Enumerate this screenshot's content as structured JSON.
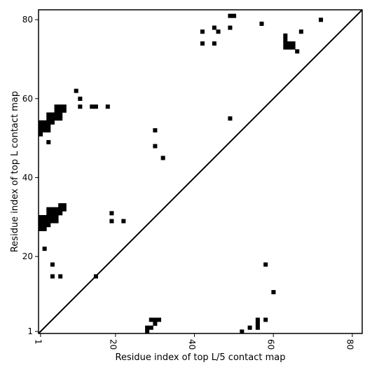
{
  "chart_data": {
    "type": "heatmap",
    "xlabel": "Residue index of top L/5 contact map",
    "ylabel": "Residue index of top L contact map",
    "xlim": [
      0.5,
      82.5
    ],
    "ylim": [
      0.5,
      82.5
    ],
    "x_ticks": [
      1,
      20,
      40,
      60,
      80
    ],
    "y_ticks": [
      1,
      20,
      40,
      60,
      80
    ],
    "diagonal": true,
    "grid": false,
    "cell_color": "#000000",
    "upper_contacts": [
      [
        1,
        51
      ],
      [
        1,
        52
      ],
      [
        1,
        53
      ],
      [
        1,
        54
      ],
      [
        2,
        52
      ],
      [
        2,
        53
      ],
      [
        2,
        54
      ],
      [
        3,
        53
      ],
      [
        3,
        54
      ],
      [
        3,
        55
      ],
      [
        3,
        56
      ],
      [
        4,
        54
      ],
      [
        4,
        55
      ],
      [
        4,
        56
      ],
      [
        3,
        52
      ],
      [
        5,
        55
      ],
      [
        5,
        56
      ],
      [
        5,
        57
      ],
      [
        5,
        58
      ],
      [
        6,
        55
      ],
      [
        6,
        56
      ],
      [
        6,
        57
      ],
      [
        6,
        58
      ],
      [
        7,
        57
      ],
      [
        7,
        58
      ],
      [
        3,
        49
      ],
      [
        1,
        27
      ],
      [
        1,
        28
      ],
      [
        1,
        29
      ],
      [
        1,
        30
      ],
      [
        2,
        27
      ],
      [
        2,
        28
      ],
      [
        2,
        29
      ],
      [
        2,
        30
      ],
      [
        3,
        28
      ],
      [
        3,
        29
      ],
      [
        3,
        30
      ],
      [
        3,
        31
      ],
      [
        3,
        32
      ],
      [
        4,
        29
      ],
      [
        4,
        30
      ],
      [
        4,
        31
      ],
      [
        4,
        32
      ],
      [
        5,
        29
      ],
      [
        5,
        30
      ],
      [
        5,
        31
      ],
      [
        5,
        32
      ],
      [
        6,
        31
      ],
      [
        6,
        32
      ],
      [
        6,
        33
      ],
      [
        7,
        32
      ],
      [
        7,
        33
      ],
      [
        2,
        22
      ],
      [
        4,
        18
      ],
      [
        4,
        15
      ],
      [
        6,
        15
      ],
      [
        10,
        62
      ],
      [
        11,
        60
      ],
      [
        11,
        58
      ],
      [
        14,
        58
      ],
      [
        15,
        58
      ],
      [
        18,
        58
      ],
      [
        19,
        31
      ],
      [
        19,
        29
      ],
      [
        22,
        29
      ],
      [
        15,
        15
      ],
      [
        30,
        52
      ],
      [
        30,
        48
      ],
      [
        32,
        45
      ],
      [
        42,
        77
      ],
      [
        42,
        74
      ],
      [
        45,
        78
      ],
      [
        45,
        74
      ],
      [
        46,
        77
      ],
      [
        49,
        81
      ],
      [
        50,
        81
      ],
      [
        49,
        78
      ],
      [
        49,
        55
      ],
      [
        57,
        79
      ],
      [
        63,
        73
      ],
      [
        63,
        74
      ],
      [
        63,
        75
      ],
      [
        63,
        76
      ],
      [
        64,
        73
      ],
      [
        64,
        74
      ],
      [
        65,
        73
      ],
      [
        65,
        74
      ],
      [
        66,
        72
      ],
      [
        67,
        77
      ],
      [
        72,
        80
      ]
    ],
    "lower_contacts": [
      [
        28,
        1
      ],
      [
        28,
        2
      ],
      [
        29,
        2
      ],
      [
        29,
        4
      ],
      [
        30,
        3
      ],
      [
        30,
        4
      ],
      [
        31,
        4
      ],
      [
        52,
        1
      ],
      [
        54,
        2
      ],
      [
        56,
        2
      ],
      [
        56,
        3
      ],
      [
        56,
        4
      ],
      [
        58,
        4
      ],
      [
        58,
        18
      ],
      [
        60,
        11
      ]
    ]
  }
}
